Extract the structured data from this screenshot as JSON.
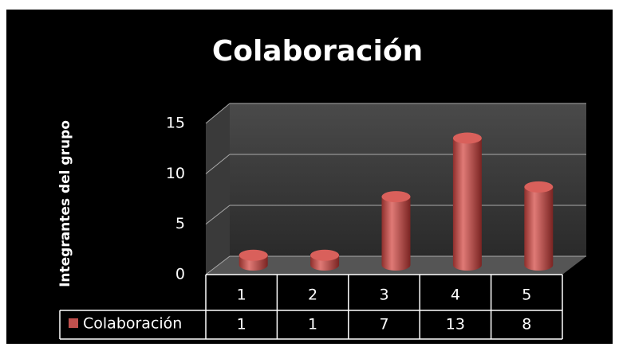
{
  "chart_data": {
    "type": "bar",
    "title": "Colaboración",
    "y_label": "Integrantes  del grupo",
    "categories": [
      "1",
      "2",
      "3",
      "4",
      "5"
    ],
    "series": [
      {
        "name": "Colaboración",
        "color": "#c0504d",
        "values": [
          1,
          1,
          7,
          13,
          8
        ]
      }
    ],
    "ylim": [
      0,
      15
    ],
    "yticks": [
      0,
      5,
      10,
      15
    ],
    "grid": true,
    "data_table": true
  }
}
